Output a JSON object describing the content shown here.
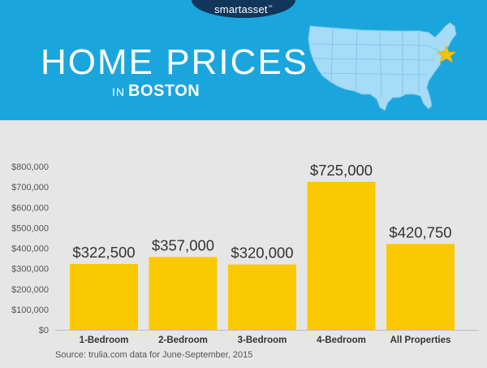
{
  "header": {
    "logo": "smartasset",
    "logo_tm": "™",
    "title": "HOME PRICES",
    "subtitle_prefix": "IN",
    "subtitle_city": "BOSTON",
    "bg_color": "#1aa6dc",
    "map_color": "#a6dcf7",
    "star_color": "#f5c400",
    "map_icon": "usa-map-icon",
    "star_icon": "star-icon"
  },
  "chart_data": {
    "type": "bar",
    "categories": [
      "1-Bedroom",
      "2-Bedroom",
      "3-Bedroom",
      "4-Bedroom",
      "All Properties"
    ],
    "values": [
      322500,
      357000,
      320000,
      725000,
      420750
    ],
    "data_labels": [
      "$322,500",
      "$357,000",
      "$320,000",
      "$725,000",
      "$420,750"
    ],
    "y_ticks": [
      0,
      100000,
      200000,
      300000,
      400000,
      500000,
      600000,
      700000,
      800000
    ],
    "y_tick_labels": [
      "$0",
      "$100,000",
      "$200,000",
      "$300,000",
      "$400,000",
      "$500,000",
      "$600,000",
      "$700,000",
      "$800,000"
    ],
    "ylim": [
      0,
      800000
    ],
    "grid": false,
    "bar_color": "#fbc900"
  },
  "source": "Source: trulia.com data for June-September, 2015"
}
